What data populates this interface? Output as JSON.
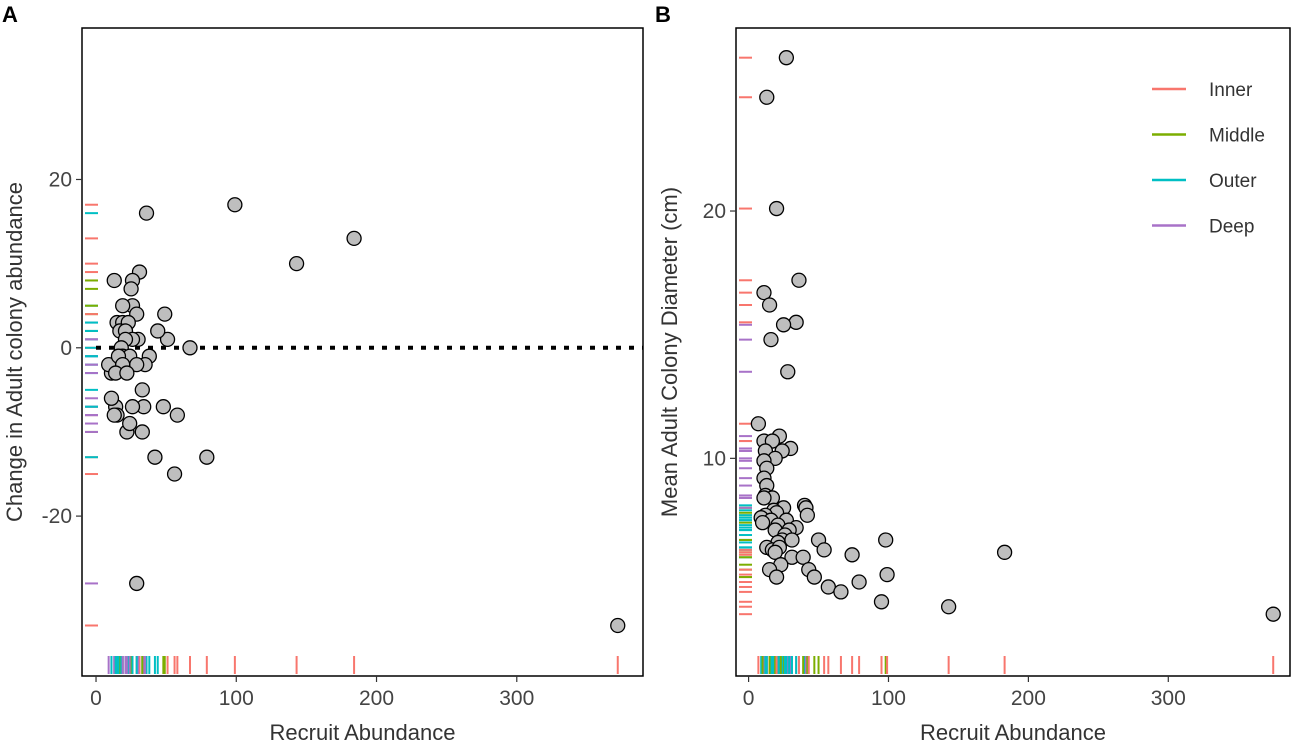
{
  "colors": {
    "Inner": "#F8766D",
    "Middle": "#7CAE00",
    "Outer": "#00BFC4",
    "Deep": "#A872C8",
    "point_fill": "#BEBEBE"
  },
  "legend": {
    "title": "",
    "entries": [
      "Inner",
      "Middle",
      "Outer",
      "Deep"
    ],
    "placement": "top-right of panel B"
  },
  "chart_data": [
    {
      "panel": "A",
      "type": "scatter",
      "xlabel": "Recruit Abundance",
      "ylabel": "Change in Adult colony abundance",
      "xlim": [
        -10,
        390
      ],
      "ylim": [
        -39,
        38
      ],
      "xticks": [
        0,
        100,
        200,
        300
      ],
      "yticks": [
        -20,
        0,
        20
      ],
      "xtick_labels": [
        "0",
        "100",
        "200",
        "300"
      ],
      "ytick_labels": [
        "-20",
        "0",
        "20"
      ],
      "reference_line": {
        "y": 0,
        "style": "dotted"
      },
      "points": [
        [
          99,
          17,
          "Inner"
        ],
        [
          184,
          13,
          "Inner"
        ],
        [
          143,
          10,
          "Inner"
        ],
        [
          372,
          -33,
          "Inner"
        ],
        [
          36,
          16,
          "Outer"
        ],
        [
          29,
          -28,
          "Deep"
        ],
        [
          79,
          -13,
          "Inner"
        ],
        [
          56,
          -15,
          "Inner"
        ],
        [
          42,
          -13,
          "Outer"
        ],
        [
          58,
          -8,
          "Inner"
        ],
        [
          48,
          -7,
          "Middle"
        ],
        [
          67,
          0,
          "Inner"
        ],
        [
          49,
          4,
          "Middle"
        ],
        [
          51,
          1,
          "Inner"
        ],
        [
          44,
          2,
          "Outer"
        ],
        [
          38,
          -1,
          "Outer"
        ],
        [
          35,
          -2,
          "Deep"
        ],
        [
          33,
          -5,
          "Outer"
        ],
        [
          34,
          -7,
          "Deep"
        ],
        [
          33,
          -10,
          "Middle"
        ],
        [
          22,
          -10,
          "Deep"
        ],
        [
          24,
          -9,
          "Deep"
        ],
        [
          26,
          -7,
          "Deep"
        ],
        [
          14,
          -7,
          "Outer"
        ],
        [
          15,
          -8,
          "Deep"
        ],
        [
          13,
          -8,
          "Deep"
        ],
        [
          11,
          -6,
          "Deep"
        ],
        [
          11,
          -3,
          "Outer"
        ],
        [
          9,
          -2,
          "Deep"
        ],
        [
          13,
          8,
          "Deep"
        ],
        [
          31,
          9,
          "Inner"
        ],
        [
          26,
          8,
          "Middle"
        ],
        [
          25,
          7,
          "Middle"
        ],
        [
          26,
          5,
          "Outer"
        ],
        [
          19,
          5,
          "Middle"
        ],
        [
          29,
          4,
          "Inner"
        ],
        [
          15,
          3,
          "Outer"
        ],
        [
          19,
          3,
          "Deep"
        ],
        [
          23,
          3,
          "Outer"
        ],
        [
          17,
          2,
          "Middle"
        ],
        [
          21,
          2,
          "Outer"
        ],
        [
          30,
          1,
          "Deep"
        ],
        [
          26,
          1,
          "Outer"
        ],
        [
          21,
          1,
          "Deep"
        ],
        [
          18,
          0,
          "Outer"
        ],
        [
          19,
          -1,
          "Outer"
        ],
        [
          24,
          -1,
          "Deep"
        ],
        [
          16,
          -1,
          "Outer"
        ],
        [
          29,
          -2,
          "Outer"
        ],
        [
          19,
          -2,
          "Deep"
        ],
        [
          14,
          -3,
          "Outer"
        ],
        [
          22,
          -3,
          "Deep"
        ]
      ]
    },
    {
      "panel": "B",
      "type": "scatter",
      "xlabel": "Recruit Abundance",
      "ylabel": "Mean Adult Colony Diameter (cm)",
      "xlim": [
        -9,
        387
      ],
      "ylim": [
        1.2,
        27.4
      ],
      "xticks": [
        0,
        100,
        200,
        300
      ],
      "yticks": [
        10,
        20
      ],
      "xtick_labels": [
        "0",
        "100",
        "200",
        "300"
      ],
      "ytick_labels": [
        "10",
        "20"
      ],
      "points": [
        [
          27,
          26.2,
          "Inner"
        ],
        [
          13,
          24.6,
          "Inner"
        ],
        [
          20,
          20.1,
          "Inner"
        ],
        [
          36,
          17.2,
          "Inner"
        ],
        [
          11,
          16.7,
          "Inner"
        ],
        [
          15,
          16.2,
          "Inner"
        ],
        [
          34,
          15.5,
          "Inner"
        ],
        [
          25,
          15.4,
          "Deep"
        ],
        [
          16,
          14.8,
          "Deep"
        ],
        [
          28,
          13.5,
          "Deep"
        ],
        [
          7,
          11.4,
          "Inner"
        ],
        [
          22,
          10.9,
          "Deep"
        ],
        [
          11,
          10.7,
          "Deep"
        ],
        [
          17,
          10.7,
          "Inner"
        ],
        [
          30,
          10.4,
          "Deep"
        ],
        [
          24,
          10.3,
          "Deep"
        ],
        [
          12,
          10.3,
          "Deep"
        ],
        [
          19,
          10.0,
          "Deep"
        ],
        [
          11,
          9.9,
          "Deep"
        ],
        [
          13,
          9.6,
          "Deep"
        ],
        [
          11,
          9.2,
          "Deep"
        ],
        [
          13,
          8.9,
          "Deep"
        ],
        [
          12,
          8.5,
          "Deep"
        ],
        [
          17,
          8.4,
          "Deep"
        ],
        [
          11,
          8.4,
          "Deep"
        ],
        [
          25,
          8.0,
          "Middle"
        ],
        [
          40,
          8.1,
          "Outer"
        ],
        [
          41,
          8.0,
          "Deep"
        ],
        [
          42,
          7.7,
          "Middle"
        ],
        [
          18,
          7.9,
          "Outer"
        ],
        [
          20,
          7.8,
          "Middle"
        ],
        [
          12,
          7.7,
          "Outer"
        ],
        [
          9,
          7.6,
          "Outer"
        ],
        [
          16,
          7.5,
          "Outer"
        ],
        [
          27,
          7.5,
          "Outer"
        ],
        [
          10,
          7.4,
          "Middle"
        ],
        [
          21,
          7.3,
          "Outer"
        ],
        [
          34,
          7.2,
          "Outer"
        ],
        [
          19,
          7.1,
          "Outer"
        ],
        [
          29,
          7.1,
          "Outer"
        ],
        [
          26,
          6.9,
          "Outer"
        ],
        [
          24,
          6.7,
          "Outer"
        ],
        [
          31,
          6.7,
          "Outer"
        ],
        [
          50,
          6.7,
          "Middle"
        ],
        [
          21,
          6.6,
          "Outer"
        ],
        [
          13,
          6.4,
          "Outer"
        ],
        [
          17,
          6.3,
          "Outer"
        ],
        [
          22,
          6.4,
          "Outer"
        ],
        [
          19,
          6.2,
          "Middle"
        ],
        [
          31,
          6.0,
          "Outer"
        ],
        [
          39,
          6.0,
          "Middle"
        ],
        [
          54,
          6.3,
          "Inner"
        ],
        [
          74,
          6.1,
          "Inner"
        ],
        [
          98,
          6.7,
          "Middle"
        ],
        [
          183,
          6.2,
          "Inner"
        ],
        [
          23,
          5.7,
          "Middle"
        ],
        [
          15,
          5.5,
          "Middle"
        ],
        [
          20,
          5.2,
          "Inner"
        ],
        [
          43,
          5.5,
          "Inner"
        ],
        [
          47,
          5.2,
          "Middle"
        ],
        [
          57,
          4.8,
          "Inner"
        ],
        [
          66,
          4.6,
          "Inner"
        ],
        [
          79,
          5.0,
          "Inner"
        ],
        [
          99,
          5.3,
          "Inner"
        ],
        [
          95,
          4.2,
          "Inner"
        ],
        [
          143,
          4.0,
          "Inner"
        ],
        [
          375,
          3.7,
          "Inner"
        ]
      ]
    }
  ],
  "panels": {
    "A": {
      "label": "A"
    },
    "B": {
      "label": "B"
    }
  }
}
